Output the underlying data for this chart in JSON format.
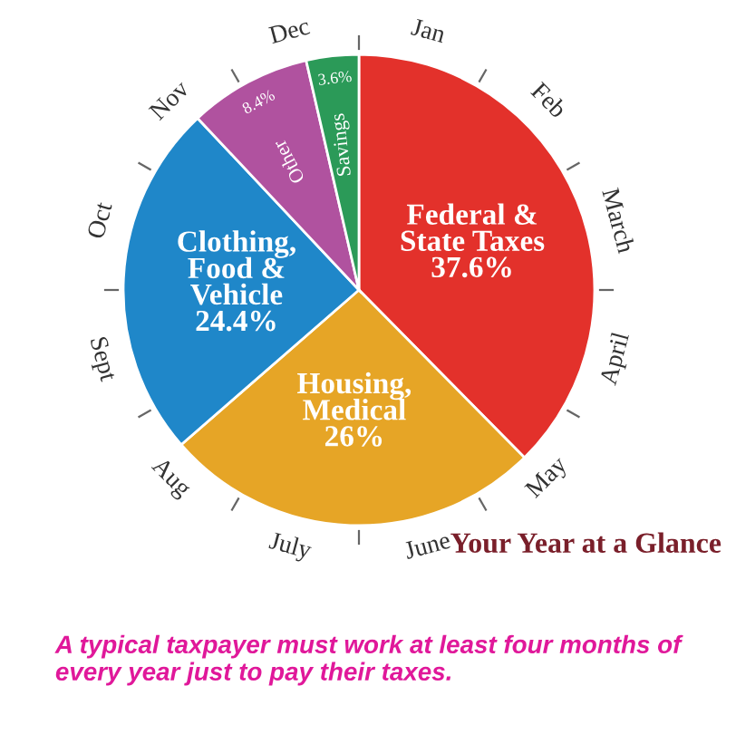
{
  "chart_data": {
    "type": "pie",
    "title": "Your Year at a Glance",
    "categories": [
      "Federal &\nState Taxes",
      "Housing,\nMedical",
      "Clothing,\nFood &\nVehicle",
      "Other",
      "Savings"
    ],
    "values": [
      37.6,
      26,
      24.4,
      8.4,
      3.6
    ],
    "value_labels": [
      "37.6%",
      "26%",
      "24.4%",
      "8.4%",
      "3.6%"
    ],
    "colors": [
      "#e3312b",
      "#e6a526",
      "#1f87c9",
      "#b0529f",
      "#2b9a58"
    ],
    "annotations": [
      "Jan",
      "Feb",
      "March",
      "April",
      "May",
      "June",
      "July",
      "Aug",
      "Sept",
      "Oct",
      "Nov",
      "Dec",
      "A typical taxpayer must work at least four months of every year just to pay their taxes."
    ]
  }
}
